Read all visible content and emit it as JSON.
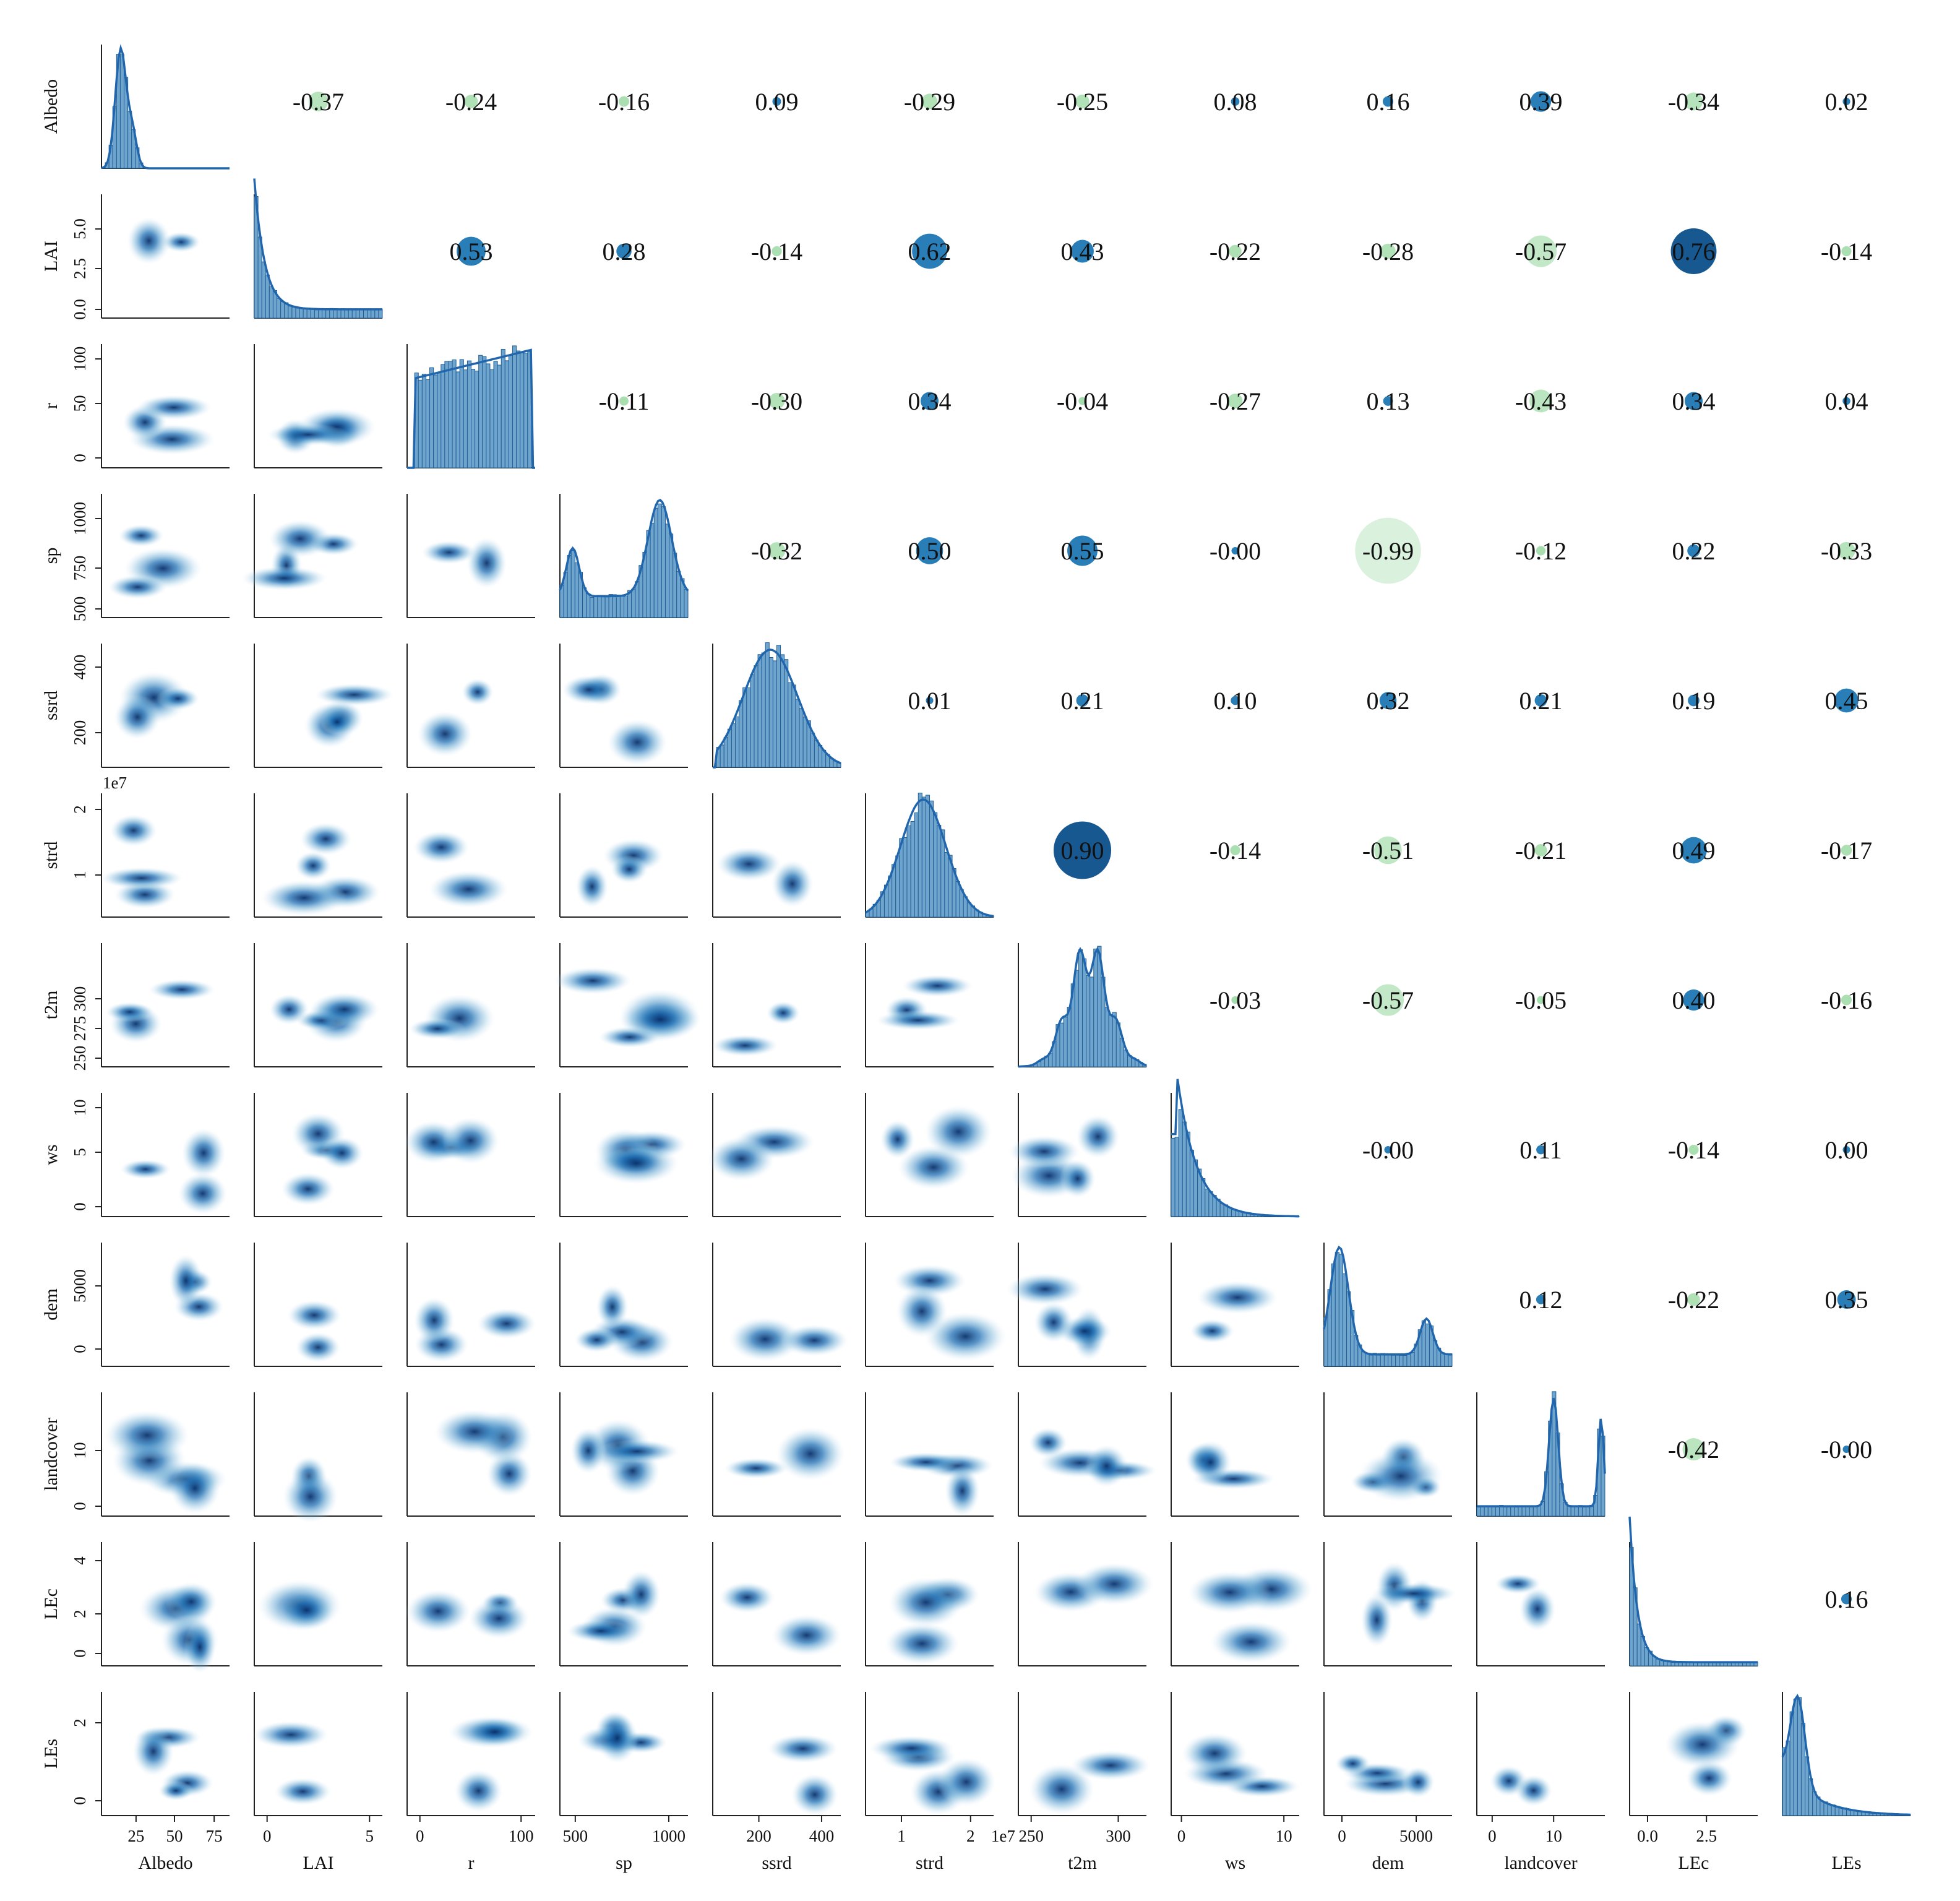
{
  "chart_data": {
    "type": "pair-plot",
    "variables": [
      "Albedo",
      "LAI",
      "r",
      "sp",
      "ssrd",
      "strd",
      "t2m",
      "ws",
      "dem",
      "landcover",
      "LEc",
      "LEs"
    ],
    "diagonal": "histogram with KDE",
    "lower_triangle": "bivariate KDE density (Blues)",
    "upper_triangle": "correlation coefficient with bubble sized by |r|, blue = positive, green = negative",
    "correlation_matrix": [
      [
        1,
        -0.37,
        -0.24,
        -0.16,
        0.09,
        -0.29,
        -0.25,
        0.08,
        0.16,
        0.39,
        -0.34,
        0.02
      ],
      [
        -0.37,
        1,
        0.53,
        0.28,
        -0.14,
        0.62,
        0.43,
        -0.22,
        -0.28,
        -0.57,
        0.76,
        -0.14
      ],
      [
        -0.24,
        0.53,
        1,
        -0.11,
        -0.3,
        0.34,
        -0.04,
        -0.27,
        0.13,
        -0.43,
        0.34,
        0.04
      ],
      [
        -0.16,
        0.28,
        -0.11,
        1,
        -0.32,
        0.5,
        0.55,
        -0.0,
        -0.99,
        -0.12,
        0.22,
        -0.33
      ],
      [
        0.09,
        -0.14,
        -0.3,
        -0.32,
        1,
        0.01,
        0.21,
        0.1,
        0.32,
        0.21,
        0.19,
        0.45
      ],
      [
        -0.29,
        0.62,
        0.34,
        0.5,
        0.01,
        1,
        0.9,
        -0.14,
        -0.51,
        -0.21,
        0.49,
        -0.17
      ],
      [
        -0.25,
        0.43,
        -0.04,
        0.55,
        0.21,
        0.9,
        1,
        -0.03,
        -0.57,
        -0.05,
        0.4,
        -0.16
      ],
      [
        0.08,
        -0.22,
        -0.27,
        -0.0,
        0.1,
        -0.14,
        -0.03,
        1,
        -0.0,
        0.11,
        -0.14,
        0.0
      ],
      [
        0.16,
        -0.28,
        0.13,
        -0.99,
        0.32,
        -0.51,
        -0.57,
        -0.0,
        1,
        0.12,
        -0.22,
        0.35
      ],
      [
        0.39,
        -0.57,
        -0.43,
        -0.12,
        0.21,
        -0.21,
        -0.05,
        0.11,
        0.12,
        1,
        -0.42,
        -0.0
      ],
      [
        -0.34,
        0.76,
        0.34,
        0.22,
        0.19,
        0.49,
        0.4,
        -0.14,
        -0.22,
        -0.42,
        1,
        0.16
      ],
      [
        0.02,
        -0.14,
        0.04,
        -0.33,
        0.45,
        -0.17,
        -0.16,
        0.0,
        0.35,
        -0.0,
        0.16,
        1
      ]
    ],
    "coefficient_labels": [
      [
        "",
        "-0.37",
        "-0.24",
        "-0.16",
        "0.09",
        "-0.29",
        "-0.25",
        "0.08",
        "0.16",
        "0.39",
        "-0.34",
        "0.02"
      ],
      [
        "",
        "",
        "0.53",
        "0.28",
        "-0.14",
        "0.62",
        "0.43",
        "-0.22",
        "-0.28",
        "-0.57",
        "0.76",
        "-0.14"
      ],
      [
        "",
        "",
        "",
        "-0.11",
        "-0.30",
        "0.34",
        "-0.04",
        "-0.27",
        "0.13",
        "-0.43",
        "0.34",
        "0.04"
      ],
      [
        "",
        "",
        "",
        "",
        "-0.32",
        "0.50",
        "0.55",
        "-0.00",
        "-0.99",
        "-0.12",
        "0.22",
        "-0.33"
      ],
      [
        "",
        "",
        "",
        "",
        "",
        "0.01",
        "0.21",
        "0.10",
        "0.32",
        "0.21",
        "0.19",
        "0.45"
      ],
      [
        "",
        "",
        "",
        "",
        "",
        "",
        "0.90",
        "-0.14",
        "-0.51",
        "-0.21",
        "0.49",
        "-0.17"
      ],
      [
        "",
        "",
        "",
        "",
        "",
        "",
        "",
        "-0.03",
        "-0.57",
        "-0.05",
        "0.40",
        "-0.16"
      ],
      [
        "",
        "",
        "",
        "",
        "",
        "",
        "",
        "",
        "-0.00",
        "0.11",
        "-0.14",
        "0.00"
      ],
      [
        "",
        "",
        "",
        "",
        "",
        "",
        "",
        "",
        "",
        "0.12",
        "-0.22",
        "0.35"
      ],
      [
        "",
        "",
        "",
        "",
        "",
        "",
        "",
        "",
        "",
        "",
        "-0.42",
        "-0.00"
      ],
      [
        "",
        "",
        "",
        "",
        "",
        "",
        "",
        "",
        "",
        "",
        "",
        "0.16"
      ],
      [
        "",
        "",
        "",
        "",
        "",
        "",
        "",
        "",
        "",
        "",
        "",
        ""
      ]
    ],
    "x_ticks": {
      "Albedo": [
        "25",
        "50",
        "75"
      ],
      "LAI": [
        "0",
        "5"
      ],
      "r": [
        "0",
        "100"
      ],
      "sp": [
        "500",
        "1000"
      ],
      "ssrd": [
        "200",
        "400"
      ],
      "strd": [
        "1",
        "2"
      ],
      "t2m": [
        "250",
        "300"
      ],
      "ws": [
        "0",
        "10"
      ],
      "dem": [
        "0",
        "5000"
      ],
      "landcover": [
        "0",
        "10"
      ],
      "LEc": [
        "0.0",
        "2.5"
      ],
      "LEs": []
    },
    "y_ticks": {
      "Albedo": [],
      "LAI": [
        "0.0",
        "2.5",
        "5.0"
      ],
      "r": [
        "0",
        "50",
        "100"
      ],
      "sp": [
        "500",
        "750",
        "1000"
      ],
      "ssrd": [
        "200",
        "400"
      ],
      "strd": [
        "1",
        "2"
      ],
      "t2m": [
        "250",
        "275",
        "300"
      ],
      "ws": [
        "0",
        "5",
        "10"
      ],
      "dem": [
        "0",
        "5000"
      ],
      "landcover": [
        "0",
        "10"
      ],
      "LEc": [
        "0",
        "2",
        "4"
      ],
      "LEs": [
        "0",
        "2"
      ]
    },
    "offset_labels": {
      "strd_y": "1e7",
      "strd_x": "1e7"
    },
    "colors": {
      "kde": "#2166ac",
      "hist_fill": "#6fa4cc",
      "hist_edge": "#1f5f99",
      "positive": "#1f77b4",
      "negative": "#98d8a0",
      "axis": "#222222"
    }
  }
}
